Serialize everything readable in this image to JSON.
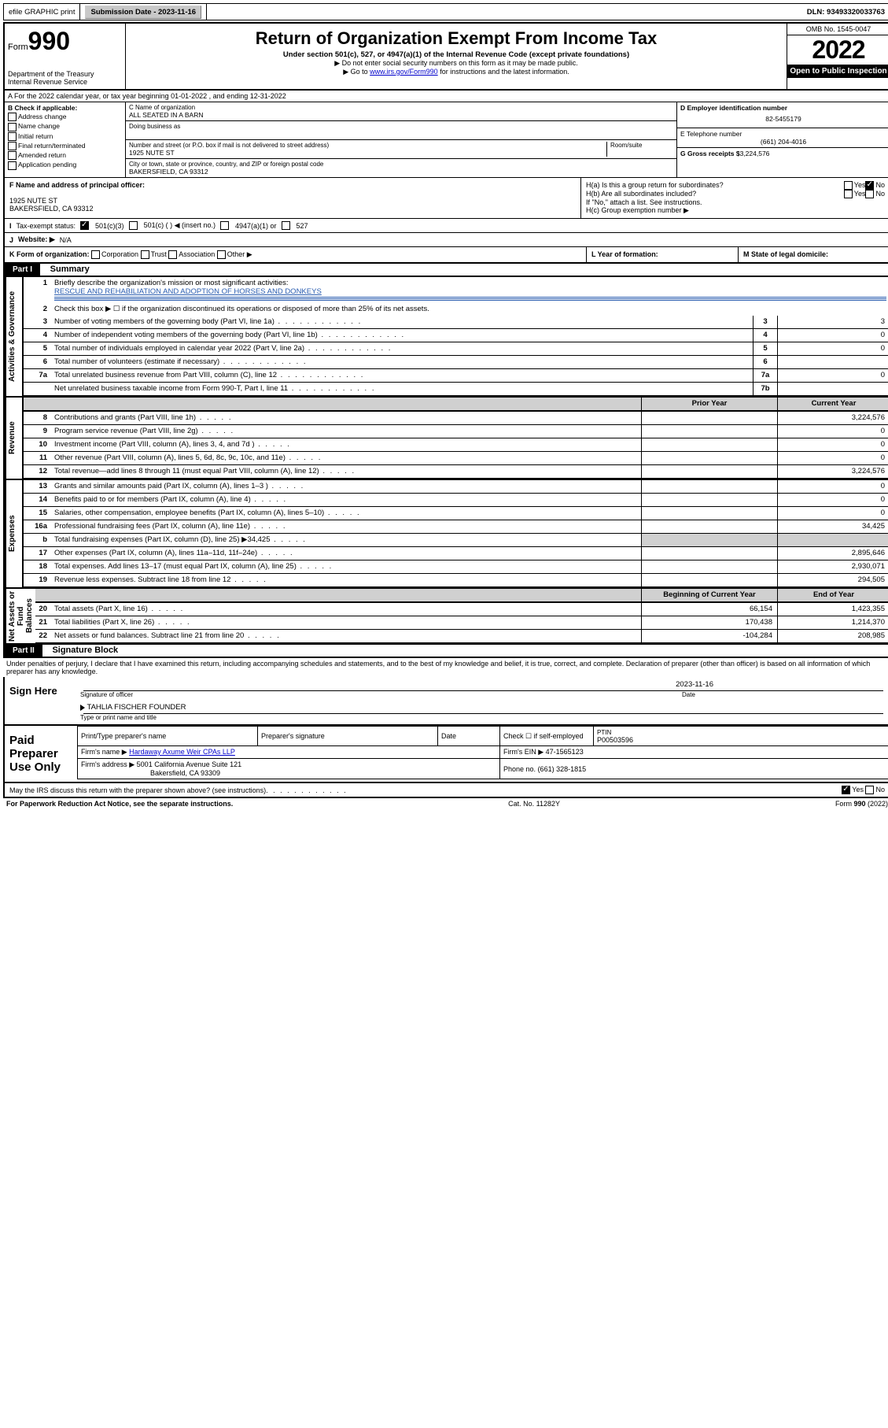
{
  "topbar": {
    "efile_label": "efile GRAPHIC print",
    "submission_label": "Submission Date - 2023-11-16",
    "dln_label": "DLN: 93493320033763"
  },
  "header": {
    "form_word": "Form",
    "form_num": "990",
    "dept": "Department of the Treasury",
    "irs": "Internal Revenue Service",
    "title": "Return of Organization Exempt From Income Tax",
    "sub1": "Under section 501(c), 527, or 4947(a)(1) of the Internal Revenue Code (except private foundations)",
    "sub2": "▶ Do not enter social security numbers on this form as it may be made public.",
    "sub3_pre": "▶ Go to ",
    "sub3_link": "www.irs.gov/Form990",
    "sub3_post": " for instructions and the latest information.",
    "omb": "OMB No. 1545-0047",
    "year": "2022",
    "open": "Open to Public Inspection"
  },
  "row_a": "A For the 2022 calendar year, or tax year beginning 01-01-2022   , and ending 12-31-2022",
  "col_b": {
    "title": "B Check if applicable:",
    "items": [
      "Address change",
      "Name change",
      "Initial return",
      "Final return/terminated",
      "Amended return",
      "Application pending"
    ]
  },
  "col_c": {
    "name_label": "C Name of organization",
    "name": "ALL SEATED IN A BARN",
    "dba_label": "Doing business as",
    "street_label": "Number and street (or P.O. box if mail is not delivered to street address)",
    "room_label": "Room/suite",
    "street": "1925 NUTE ST",
    "city_label": "City or town, state or province, country, and ZIP or foreign postal code",
    "city": "BAKERSFIELD, CA  93312"
  },
  "col_de": {
    "d_label": "D Employer identification number",
    "d_val": "82-5455179",
    "e_label": "E Telephone number",
    "e_val": "(661) 204-4016",
    "g_label": "G Gross receipts $",
    "g_val": "3,224,576"
  },
  "row_f": {
    "label": "F Name and address of principal officer:",
    "line1": "1925 NUTE ST",
    "line2": "BAKERSFIELD, CA  93312"
  },
  "row_h": {
    "ha": "H(a)  Is this a group return for subordinates?",
    "hb": "H(b)  Are all subordinates included?",
    "hb_note": "If \"No,\" attach a list. See instructions.",
    "hc": "H(c)  Group exemption number ▶",
    "yes": "Yes",
    "no": "No"
  },
  "row_i": {
    "label": "Tax-exempt status:",
    "o1": "501(c)(3)",
    "o2": "501(c) (  ) ◀ (insert no.)",
    "o3": "4947(a)(1) or",
    "o4": "527"
  },
  "row_j": {
    "label": "Website: ▶",
    "val": "N/A"
  },
  "row_k": {
    "label": "K Form of organization:",
    "o1": "Corporation",
    "o2": "Trust",
    "o3": "Association",
    "o4": "Other ▶"
  },
  "row_l": "L Year of formation:",
  "row_m": "M State of legal domicile:",
  "part1": {
    "tag": "Part I",
    "title": "Summary"
  },
  "summary": {
    "l1_label": "Briefly describe the organization's mission or most significant activities:",
    "l1_val": "RESCUE AND REHABILIATION AND ADOPTION OF HORSES AND DONKEYS",
    "l2": "Check this box ▶ ☐ if the organization discontinued its operations or disposed of more than 25% of its net assets.",
    "rows_top": [
      {
        "n": "3",
        "t": "Number of voting members of the governing body (Part VI, line 1a)",
        "box": "3",
        "v": "3"
      },
      {
        "n": "4",
        "t": "Number of independent voting members of the governing body (Part VI, line 1b)",
        "box": "4",
        "v": "0"
      },
      {
        "n": "5",
        "t": "Total number of individuals employed in calendar year 2022 (Part V, line 2a)",
        "box": "5",
        "v": "0"
      },
      {
        "n": "6",
        "t": "Total number of volunteers (estimate if necessary)",
        "box": "6",
        "v": ""
      },
      {
        "n": "7a",
        "t": "Total unrelated business revenue from Part VIII, column (C), line 12",
        "box": "7a",
        "v": "0"
      },
      {
        "n": "",
        "t": "Net unrelated business taxable income from Form 990-T, Part I, line 11",
        "box": "7b",
        "v": ""
      }
    ],
    "col_hdr_prior": "Prior Year",
    "col_hdr_curr": "Current Year",
    "revenue": [
      {
        "n": "8",
        "t": "Contributions and grants (Part VIII, line 1h)",
        "p": "",
        "c": "3,224,576"
      },
      {
        "n": "9",
        "t": "Program service revenue (Part VIII, line 2g)",
        "p": "",
        "c": "0"
      },
      {
        "n": "10",
        "t": "Investment income (Part VIII, column (A), lines 3, 4, and 7d )",
        "p": "",
        "c": "0"
      },
      {
        "n": "11",
        "t": "Other revenue (Part VIII, column (A), lines 5, 6d, 8c, 9c, 10c, and 11e)",
        "p": "",
        "c": "0"
      },
      {
        "n": "12",
        "t": "Total revenue—add lines 8 through 11 (must equal Part VIII, column (A), line 12)",
        "p": "",
        "c": "3,224,576"
      }
    ],
    "expenses": [
      {
        "n": "13",
        "t": "Grants and similar amounts paid (Part IX, column (A), lines 1–3 )",
        "p": "",
        "c": "0"
      },
      {
        "n": "14",
        "t": "Benefits paid to or for members (Part IX, column (A), line 4)",
        "p": "",
        "c": "0"
      },
      {
        "n": "15",
        "t": "Salaries, other compensation, employee benefits (Part IX, column (A), lines 5–10)",
        "p": "",
        "c": "0"
      },
      {
        "n": "16a",
        "t": "Professional fundraising fees (Part IX, column (A), line 11e)",
        "p": "",
        "c": "34,425"
      },
      {
        "n": "b",
        "t": "Total fundraising expenses (Part IX, column (D), line 25) ▶34,425",
        "p": "GREY",
        "c": "GREY"
      },
      {
        "n": "17",
        "t": "Other expenses (Part IX, column (A), lines 11a–11d, 11f–24e)",
        "p": "",
        "c": "2,895,646"
      },
      {
        "n": "18",
        "t": "Total expenses. Add lines 13–17 (must equal Part IX, column (A), line 25)",
        "p": "",
        "c": "2,930,071"
      },
      {
        "n": "19",
        "t": "Revenue less expenses. Subtract line 18 from line 12",
        "p": "",
        "c": "294,505"
      }
    ],
    "col_hdr_begin": "Beginning of Current Year",
    "col_hdr_end": "End of Year",
    "netassets": [
      {
        "n": "20",
        "t": "Total assets (Part X, line 16)",
        "p": "66,154",
        "c": "1,423,355"
      },
      {
        "n": "21",
        "t": "Total liabilities (Part X, line 26)",
        "p": "170,438",
        "c": "1,214,370"
      },
      {
        "n": "22",
        "t": "Net assets or fund balances. Subtract line 21 from line 20",
        "p": "-104,284",
        "c": "208,985"
      }
    ],
    "side_labels": {
      "ag": "Activities & Governance",
      "rev": "Revenue",
      "exp": "Expenses",
      "na": "Net Assets or Fund Balances"
    }
  },
  "part2": {
    "tag": "Part II",
    "title": "Signature Block"
  },
  "penalties": "Under penalties of perjury, I declare that I have examined this return, including accompanying schedules and statements, and to the best of my knowledge and belief, it is true, correct, and complete. Declaration of preparer (other than officer) is based on all information of which preparer has any knowledge.",
  "sign": {
    "here": "Sign Here",
    "sig_officer": "Signature of officer",
    "date": "Date",
    "date_val": "2023-11-16",
    "name_title": "TAHLIA FISCHER  FOUNDER",
    "type_name": "Type or print name and title"
  },
  "paid": {
    "left": "Paid Preparer Use Only",
    "h1": "Print/Type preparer's name",
    "h2": "Preparer's signature",
    "h3": "Date",
    "h4_pre": "Check ☐ if self-employed",
    "h5": "PTIN",
    "ptin": "P00503596",
    "firm_name_l": "Firm's name    ▶",
    "firm_name": "Hardaway Axume Weir CPAs LLP",
    "firm_ein_l": "Firm's EIN ▶",
    "firm_ein": "47-1565123",
    "firm_addr_l": "Firm's address ▶",
    "firm_addr1": "5001 California Avenue Suite 121",
    "firm_addr2": "Bakersfield, CA  93309",
    "phone_l": "Phone no.",
    "phone": "(661) 328-1815"
  },
  "may_irs": "May the IRS discuss this return with the preparer shown above? (see instructions)",
  "may_yes": "Yes",
  "may_no": "No",
  "footer": {
    "l": "For Paperwork Reduction Act Notice, see the separate instructions.",
    "m": "Cat. No. 11282Y",
    "r": "Form 990 (2022)"
  }
}
